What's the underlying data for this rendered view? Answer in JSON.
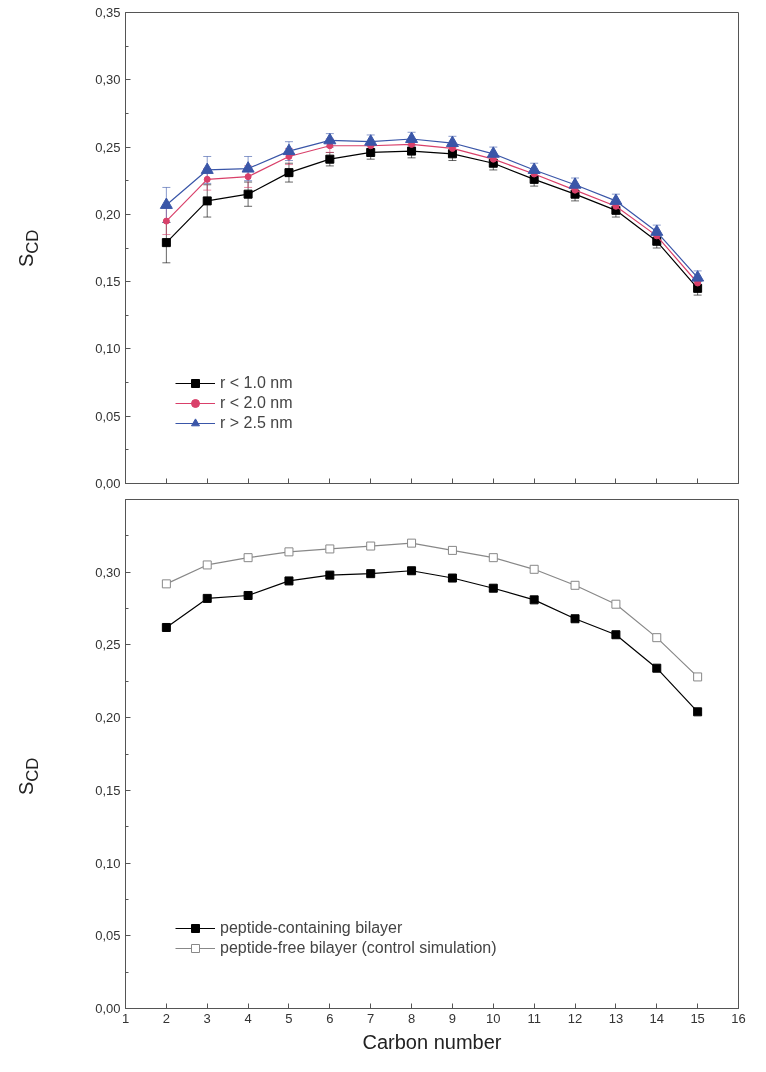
{
  "chart_data": [
    {
      "type": "line",
      "ylabel": "S$_{CD}$",
      "x": [
        2,
        3,
        4,
        5,
        6,
        7,
        8,
        9,
        10,
        11,
        12,
        13,
        14,
        15
      ],
      "xlim": [
        1,
        16
      ],
      "xticks": [
        1,
        2,
        3,
        4,
        5,
        6,
        7,
        8,
        9,
        10,
        11,
        12,
        13,
        14,
        15,
        16
      ],
      "ylim": [
        0,
        0.35
      ],
      "yticks": [
        {
          "value": 0,
          "label": "0,00"
        },
        {
          "value": 0.05,
          "label": "0,05"
        },
        {
          "value": 0.1,
          "label": "0,10"
        },
        {
          "value": 0.15,
          "label": "0,15"
        },
        {
          "value": 0.2,
          "label": "0,20"
        },
        {
          "value": 0.25,
          "label": "0,25"
        },
        {
          "value": 0.3,
          "label": "0,30"
        },
        {
          "value": 0.35,
          "label": "0,35"
        }
      ],
      "tick_labels": "y",
      "grid": false,
      "legend": "bottom left",
      "series": [
        {
          "name": "r < 1.0 nm",
          "color": "#000000",
          "marker": "square",
          "values": [
            0.179,
            0.21,
            0.215,
            0.231,
            0.241,
            0.246,
            0.247,
            0.245,
            0.238,
            0.226,
            0.215,
            0.203,
            0.18,
            0.145
          ],
          "errors": [
            0.015,
            0.012,
            0.009,
            0.007,
            0.005,
            0.005,
            0.005,
            0.005,
            0.005,
            0.005,
            0.005,
            0.005,
            0.005,
            0.005
          ]
        },
        {
          "name": "r < 2.0 nm",
          "color": "#d9406a",
          "marker": "circle",
          "values": [
            0.195,
            0.226,
            0.228,
            0.243,
            0.251,
            0.251,
            0.252,
            0.249,
            0.241,
            0.23,
            0.218,
            0.206,
            0.184,
            0.149
          ],
          "errors": [
            0.01,
            0.008,
            0.008,
            0.006,
            0.005,
            null,
            null,
            null,
            null,
            null,
            null,
            null,
            null,
            null
          ]
        },
        {
          "name": "r > 2.5 nm",
          "color": "#3a56a8",
          "marker": "triangle",
          "values": [
            0.207,
            0.233,
            0.234,
            0.247,
            0.255,
            0.254,
            0.256,
            0.253,
            0.245,
            0.233,
            0.222,
            0.21,
            0.187,
            0.153
          ],
          "errors": [
            0.013,
            0.01,
            0.009,
            0.007,
            0.005,
            0.005,
            0.005,
            0.005,
            0.005,
            0.005,
            0.005,
            0.005,
            0.005,
            0.005
          ]
        }
      ]
    },
    {
      "type": "line",
      "ylabel": "S$_{CD}$",
      "xlabel": "Carbon number",
      "x": [
        2,
        3,
        4,
        5,
        6,
        7,
        8,
        9,
        10,
        11,
        12,
        13,
        14,
        15
      ],
      "xlim": [
        1,
        16
      ],
      "xticks": [
        1,
        2,
        3,
        4,
        5,
        6,
        7,
        8,
        9,
        10,
        11,
        12,
        13,
        14,
        15,
        16
      ],
      "ylim": [
        0,
        0.35
      ],
      "yticks": [
        {
          "value": 0,
          "label": "0,00"
        },
        {
          "value": 0.05,
          "label": "0,05"
        },
        {
          "value": 0.1,
          "label": "0,10"
        },
        {
          "value": 0.15,
          "label": "0,15"
        },
        {
          "value": 0.2,
          "label": "0,20"
        },
        {
          "value": 0.25,
          "label": "0,25"
        },
        {
          "value": 0.3,
          "label": "0,30"
        },
        {
          "value": 0.35,
          "label": null
        }
      ],
      "grid": false,
      "legend": "bottom left",
      "series": [
        {
          "name": "peptide-containing bilayer",
          "color": "#000000",
          "marker": "square",
          "values": [
            0.262,
            0.282,
            0.284,
            0.294,
            0.298,
            0.299,
            0.301,
            0.296,
            0.289,
            0.281,
            0.268,
            0.257,
            0.234,
            0.204
          ]
        },
        {
          "name": "peptide-free bilayer (control simulation)",
          "color": "#888888",
          "marker": "square_open",
          "values": [
            0.292,
            0.305,
            0.31,
            0.314,
            0.316,
            0.318,
            0.32,
            0.315,
            0.31,
            0.302,
            0.291,
            0.278,
            0.255,
            0.228
          ]
        }
      ]
    }
  ]
}
